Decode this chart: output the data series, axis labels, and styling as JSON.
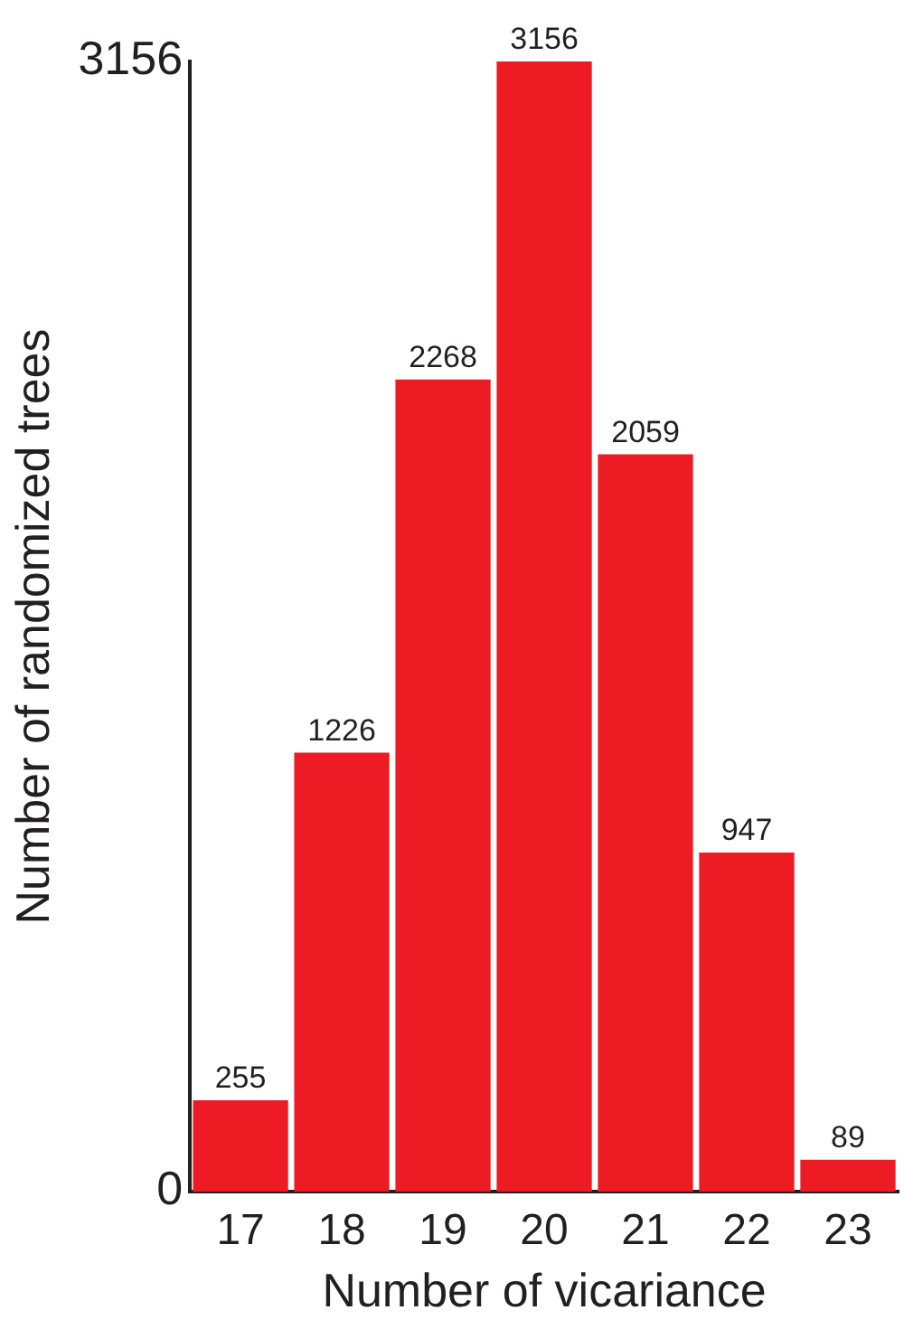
{
  "chart_data": {
    "type": "bar",
    "xlabel": "Number of vicariance",
    "ylabel": "Number of randomized trees",
    "categories": [
      "17",
      "18",
      "19",
      "20",
      "21",
      "22",
      "23"
    ],
    "values": [
      255,
      1226,
      2268,
      3156,
      2059,
      947,
      89
    ],
    "color": "#ed1c24",
    "ylim": [
      0,
      3156
    ],
    "yticks": [
      0,
      3156
    ],
    "grid": false,
    "legend": false,
    "data_labels": true
  }
}
